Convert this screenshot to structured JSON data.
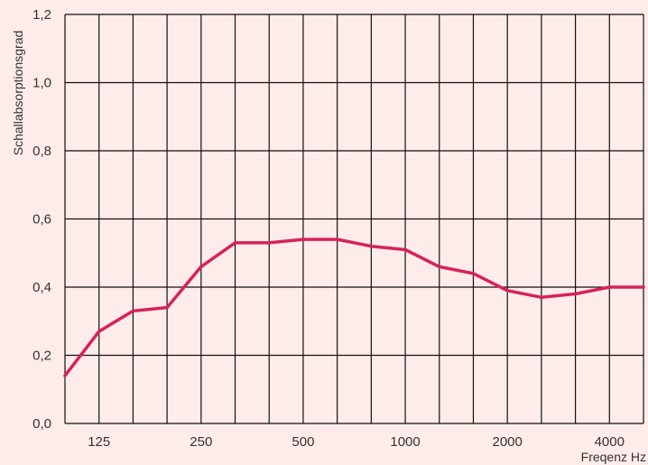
{
  "chart_data": {
    "type": "line",
    "title": "",
    "xlabel": "Freqenz Hz",
    "ylabel": "Schallabsorptionsgrad",
    "x": [
      100,
      125,
      160,
      200,
      250,
      315,
      400,
      500,
      630,
      800,
      1000,
      1250,
      1600,
      2000,
      2500,
      3150,
      4000,
      5000
    ],
    "x_tick_labels": [
      "125",
      "250",
      "500",
      "1000",
      "2000",
      "4000"
    ],
    "y_tick_labels": [
      "0,0",
      "0,2",
      "0,4",
      "0,6",
      "0,8",
      "1,0",
      "1,2"
    ],
    "ylim": [
      0,
      1.2
    ],
    "grid": true,
    "series": [
      {
        "values": [
          0.14,
          0.27,
          0.33,
          0.34,
          0.46,
          0.53,
          0.53,
          0.54,
          0.54,
          0.52,
          0.51,
          0.46,
          0.44,
          0.39,
          0.37,
          0.38,
          0.4,
          0.4
        ]
      }
    ],
    "colors": {
      "line": "#d6235a",
      "grid": "#111111",
      "background": "#fdecea"
    }
  }
}
